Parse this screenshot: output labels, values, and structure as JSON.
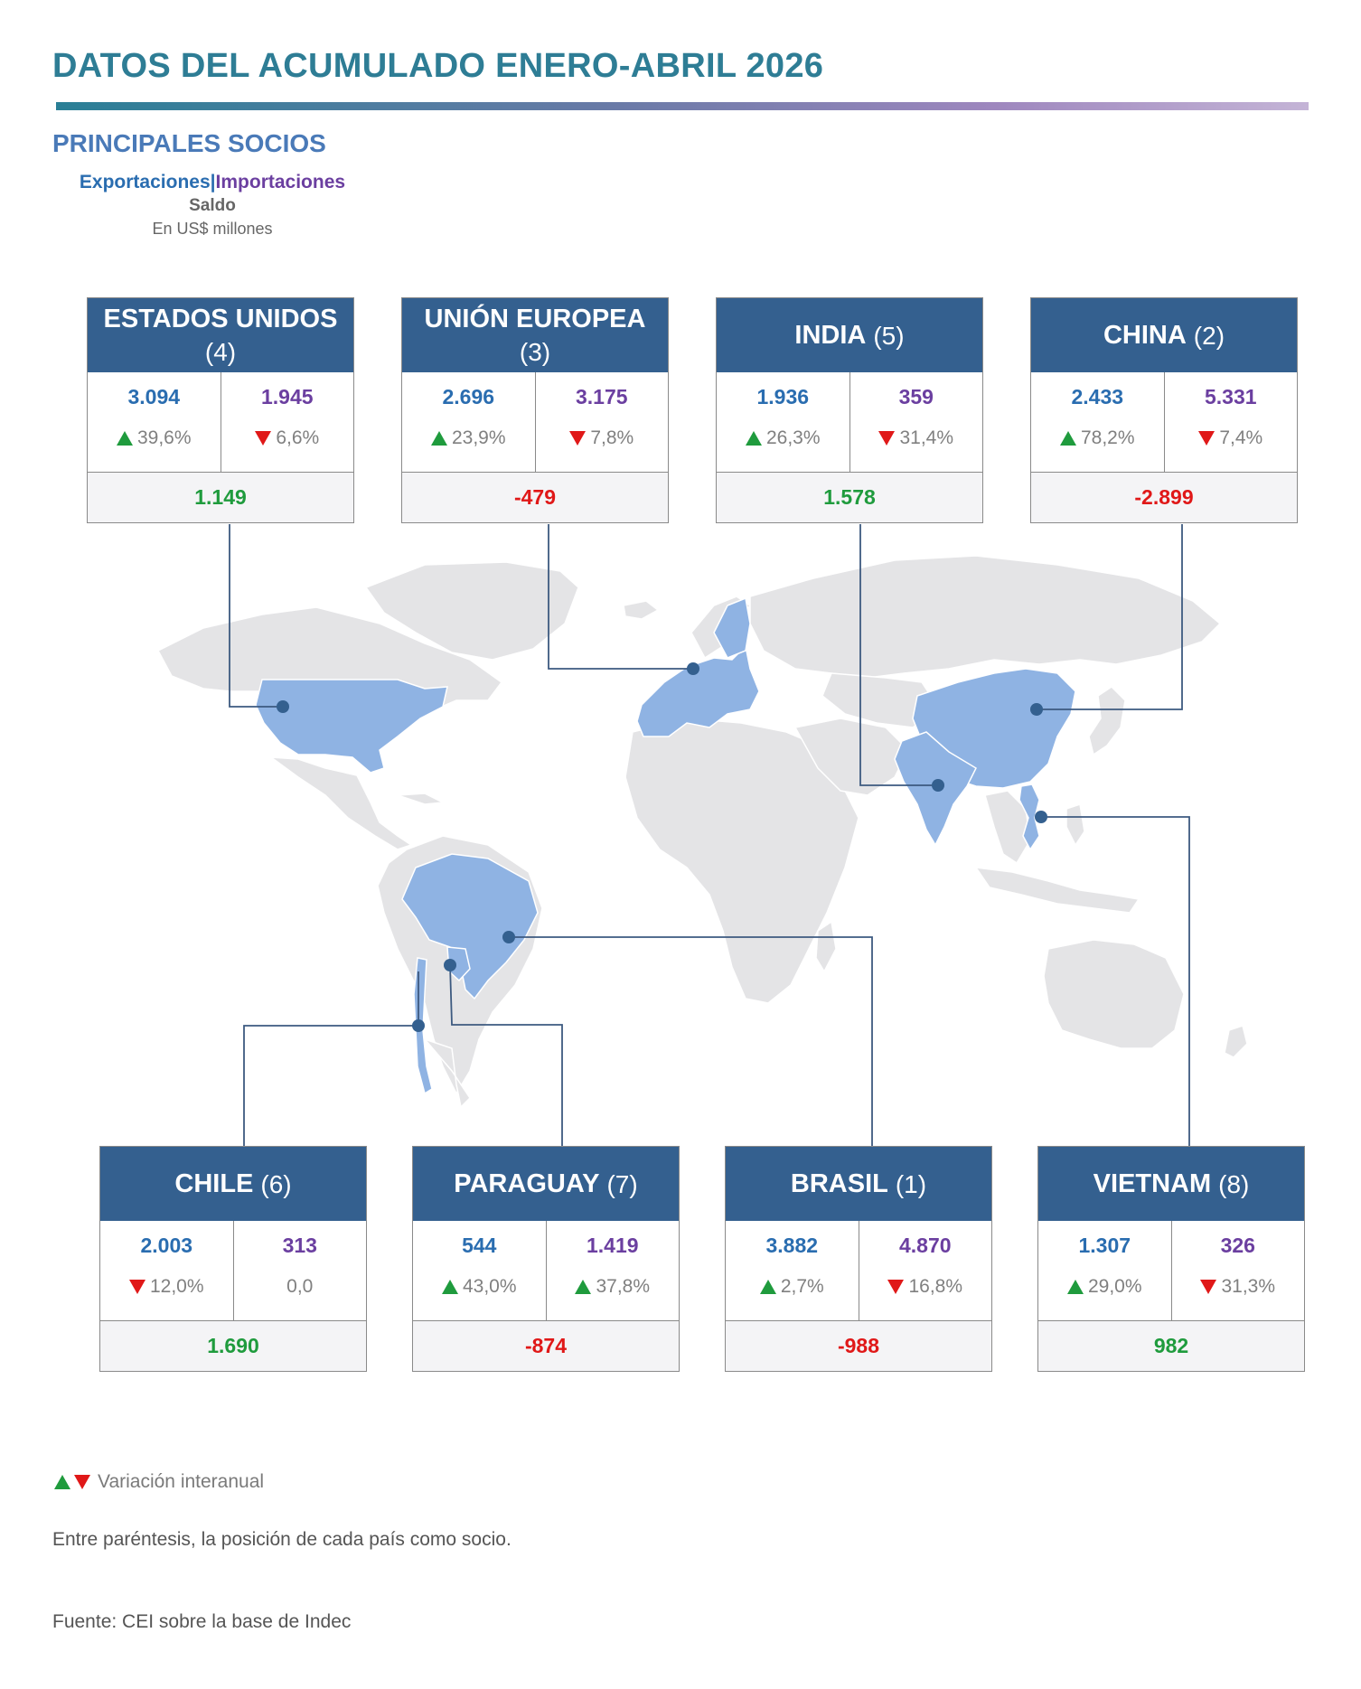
{
  "header": {
    "title": "DATOS DEL ACUMULADO ENERO-ABRIL 2026",
    "section_title": "PRINCIPALES SOCIOS"
  },
  "legend": {
    "exports_label": "Exportaciones",
    "separator": "|",
    "imports_label": "Importaciones",
    "balance_label": "Saldo",
    "unit_label": "En US$ millones"
  },
  "colors": {
    "exports": "#2a6db0",
    "imports": "#6b3fa0",
    "positive": "#1f9b3d",
    "negative": "#e01818",
    "header": "#34608f",
    "highlight_country": "#8fb3e3",
    "map_land": "#e4e4e6"
  },
  "partners": {
    "usa": {
      "name": "ESTADOS UNIDOS",
      "rank": "(4)",
      "exports": "3.094",
      "exports_var": "39,6%",
      "exports_dir": "up",
      "imports": "1.945",
      "imports_var": "6,6%",
      "imports_dir": "down",
      "balance": "1.149",
      "balance_sign": "pos"
    },
    "eu": {
      "name": "UNIÓN EUROPEA",
      "rank": "(3)",
      "exports": "2.696",
      "exports_var": "23,9%",
      "exports_dir": "up",
      "imports": "3.175",
      "imports_var": "7,8%",
      "imports_dir": "down",
      "balance": "-479",
      "balance_sign": "neg"
    },
    "india": {
      "name": "INDIA",
      "rank": "(5)",
      "exports": "1.936",
      "exports_var": "26,3%",
      "exports_dir": "up",
      "imports": "359",
      "imports_var": "31,4%",
      "imports_dir": "down",
      "balance": "1.578",
      "balance_sign": "pos"
    },
    "china": {
      "name": "CHINA",
      "rank": "(2)",
      "exports": "2.433",
      "exports_var": "78,2%",
      "exports_dir": "up",
      "imports": "5.331",
      "imports_var": "7,4%",
      "imports_dir": "down",
      "balance": "-2.899",
      "balance_sign": "neg"
    },
    "chile": {
      "name": "CHILE",
      "rank": "(6)",
      "exports": "2.003",
      "exports_var": "12,0%",
      "exports_dir": "down",
      "imports": "313",
      "imports_var": "0,0",
      "imports_dir": "none",
      "balance": "1.690",
      "balance_sign": "pos"
    },
    "paraguay": {
      "name": "PARAGUAY",
      "rank": "(7)",
      "exports": "544",
      "exports_var": "43,0%",
      "exports_dir": "up",
      "imports": "1.419",
      "imports_var": "37,8%",
      "imports_dir": "up",
      "balance": "-874",
      "balance_sign": "neg"
    },
    "brasil": {
      "name": "BRASIL",
      "rank": "(1)",
      "exports": "3.882",
      "exports_var": "2,7%",
      "exports_dir": "up",
      "imports": "4.870",
      "imports_var": "16,8%",
      "imports_dir": "down",
      "balance": "-988",
      "balance_sign": "neg"
    },
    "vietnam": {
      "name": "VIETNAM",
      "rank": "(8)",
      "exports": "1.307",
      "exports_var": "29,0%",
      "exports_dir": "up",
      "imports": "326",
      "imports_var": "31,3%",
      "imports_dir": "down",
      "balance": "982",
      "balance_sign": "pos"
    }
  },
  "footer": {
    "variation_legend": "Variación interanual",
    "note": "Entre paréntesis, la posición de cada país como socio.",
    "source": "Fuente: CEI sobre la base de Indec"
  }
}
